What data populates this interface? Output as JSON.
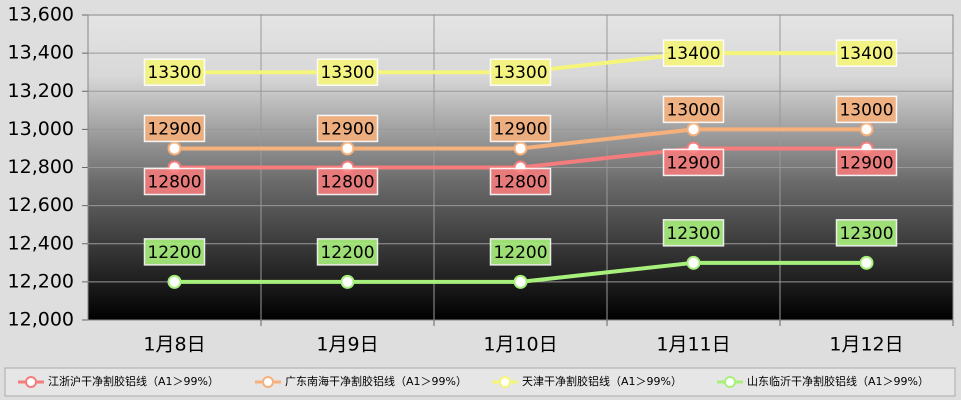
{
  "chart_data": {
    "type": "line",
    "categories": [
      "1月8日",
      "1月9日",
      "1月10日",
      "1月11日",
      "1月12日"
    ],
    "series": [
      {
        "name": "江浙沪干净割胶铝线（A1＞99%）",
        "color": "#f47c7c",
        "values": [
          12800,
          12800,
          12800,
          12900,
          12900
        ]
      },
      {
        "name": "广东南海干净割胶铝线（A1＞99%）",
        "color": "#f5b07c",
        "values": [
          12900,
          12900,
          12900,
          13000,
          13000
        ]
      },
      {
        "name": "天津干净割胶铝线（A1＞99%）",
        "color": "#f5f57c",
        "values": [
          13300,
          13300,
          13300,
          13400,
          13400
        ]
      },
      {
        "name": "山东临沂干净割胶铝线（A1＞99%）",
        "color": "#a8f07c",
        "values": [
          12200,
          12200,
          12200,
          12300,
          12300
        ]
      }
    ],
    "ylim": [
      12000,
      13600
    ],
    "yticks": [
      {
        "value": 12000,
        "label": "12,000"
      },
      {
        "value": 12200,
        "label": "12,200"
      },
      {
        "value": 12400,
        "label": "12,400"
      },
      {
        "value": 12600,
        "label": "12,600"
      },
      {
        "value": 12800,
        "label": "12,800"
      },
      {
        "value": 13000,
        "label": "13,000"
      },
      {
        "value": 13200,
        "label": "13,200"
      },
      {
        "value": 13400,
        "label": "13,400"
      },
      {
        "value": 13600,
        "label": "13,600"
      }
    ],
    "grid": true,
    "legend": "bottom"
  }
}
